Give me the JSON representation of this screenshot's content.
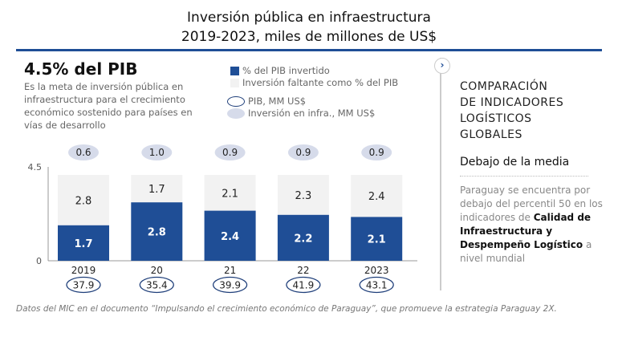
{
  "title": [
    "Inversión pública en infraestructura",
    "2019-2023, miles de millones de US$"
  ],
  "headline": "4.5% del PIB",
  "description": "Es la meta de inversión pública en infraestructura para el crecimiento económico sostenido para países en vías de desarrollo",
  "legend": {
    "invested": "% del PIB invertido",
    "missing": "Inversión faltante como % del PIB",
    "gdp": "PIB, MM US$",
    "infra": "Inversión en infra., MM US$"
  },
  "sidebar": {
    "title": [
      "COMPARACIÓN",
      "DE INDICADORES",
      "LOGÍSTICOS",
      "GLOBALES"
    ],
    "subtitle": "Debajo de la media",
    "text_a": "Paraguay se encuentra por debajo del percentil 50 en los indicadores de ",
    "text_bold": "Calidad de Infraestructura y Despempeño Logístico",
    "text_b": " a nivel mundial",
    "chevron_icon": "chevron-right"
  },
  "footer": "Datos del MIC en el documento “Impulsando el crecimiento económico de Paraguay”, que promueve la estrategia Paraguay 2X.",
  "colors": {
    "invested": "#1f4e96",
    "missing": "#f2f2f2",
    "infra": "#d6dbea",
    "gdp_outline": "#1f3f7a"
  },
  "chart_data": {
    "type": "bar",
    "stacked": true,
    "categories": [
      "2019",
      "20",
      "21",
      "22",
      "2023"
    ],
    "series": [
      {
        "name": "% del PIB invertido",
        "values": [
          1.7,
          2.8,
          2.4,
          2.2,
          2.1
        ]
      },
      {
        "name": "Inversión faltante como % del PIB",
        "values": [
          2.8,
          1.7,
          2.1,
          2.3,
          2.4
        ]
      }
    ],
    "infra_investment": [
      0.6,
      1.0,
      0.9,
      0.9,
      0.9
    ],
    "gdp": [
      37.9,
      35.4,
      39.9,
      41.9,
      43.1
    ],
    "ylim": [
      0,
      4.5
    ],
    "yticks": [
      "0",
      "4.5"
    ],
    "legend": "top"
  }
}
